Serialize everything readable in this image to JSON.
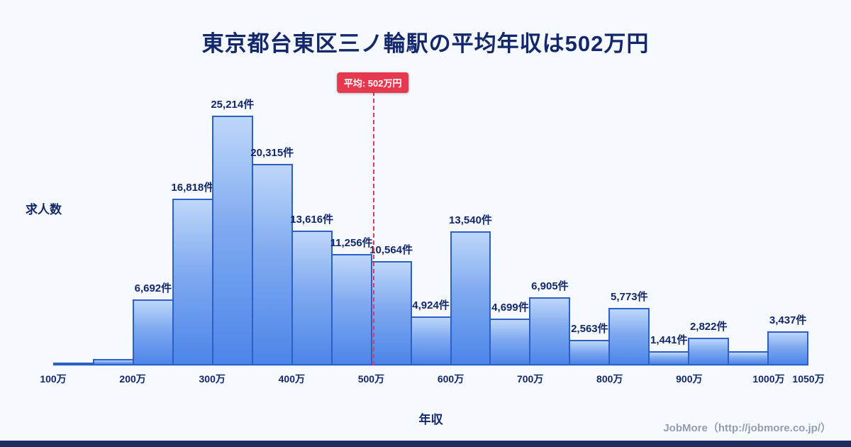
{
  "title": "東京都台東区三ノ輪駅の平均年収は502万円",
  "average_badge": "平均: 502万円",
  "footer": "JobMore（http://jobmore.co.jp/）",
  "colors": {
    "background": "#f6f9fd",
    "title_text": "#13276b",
    "bar_fill_top": "#bdd7f9",
    "bar_fill_bottom": "#4c85e9",
    "bar_border": "#2d5fc8",
    "average_line": "#e63950",
    "badge_bg": "#e63950",
    "badge_text": "#ffffff",
    "footer_text": "#949db0",
    "bottom_bar": "#1d2d5e"
  },
  "chart_data": {
    "type": "bar",
    "title": "東京都台東区三ノ輪駅の平均年収は502万円",
    "xlabel": "年収",
    "ylabel": "求人数",
    "x_range_man_yen": [
      100,
      1050
    ],
    "bin_width_man_yen": 50,
    "ymax": 25214,
    "average_value_man_yen": 502,
    "grid": false,
    "legend": false,
    "bins": [
      {
        "range": "100-150",
        "value": 220,
        "label": ""
      },
      {
        "range": "150-200",
        "value": 680,
        "label": ""
      },
      {
        "range": "200-250",
        "value": 6692,
        "label": "6,692件"
      },
      {
        "range": "250-300",
        "value": 16818,
        "label": "16,818件"
      },
      {
        "range": "300-350",
        "value": 25214,
        "label": "25,214件"
      },
      {
        "range": "350-400",
        "value": 20315,
        "label": "20,315件"
      },
      {
        "range": "400-450",
        "value": 13616,
        "label": "13,616件"
      },
      {
        "range": "450-500",
        "value": 11256,
        "label": "11,256件"
      },
      {
        "range": "500-550",
        "value": 10564,
        "label": "10,564件"
      },
      {
        "range": "550-600",
        "value": 4924,
        "label": "4,924件"
      },
      {
        "range": "600-650",
        "value": 13540,
        "label": "13,540件"
      },
      {
        "range": "650-700",
        "value": 4699,
        "label": "4,699件"
      },
      {
        "range": "700-750",
        "value": 6905,
        "label": "6,905件"
      },
      {
        "range": "750-800",
        "value": 2563,
        "label": "2,563件"
      },
      {
        "range": "800-850",
        "value": 5773,
        "label": "5,773件"
      },
      {
        "range": "850-900",
        "value": 1441,
        "label": "1,441件"
      },
      {
        "range": "900-950",
        "value": 2822,
        "label": "2,822件"
      },
      {
        "range": "950-1000",
        "value": 1400,
        "label": ""
      },
      {
        "range": "1000-1050",
        "value": 3437,
        "label": "3,437件"
      }
    ],
    "x_ticks": [
      {
        "label": "100万",
        "value": 100
      },
      {
        "label": "200万",
        "value": 200
      },
      {
        "label": "300万",
        "value": 300
      },
      {
        "label": "400万",
        "value": 400
      },
      {
        "label": "500万",
        "value": 500
      },
      {
        "label": "600万",
        "value": 600
      },
      {
        "label": "700万",
        "value": 700
      },
      {
        "label": "800万",
        "value": 800
      },
      {
        "label": "900万",
        "value": 900
      },
      {
        "label": "1000万",
        "value": 1000
      },
      {
        "label": "1050万",
        "value": 1050
      }
    ]
  }
}
